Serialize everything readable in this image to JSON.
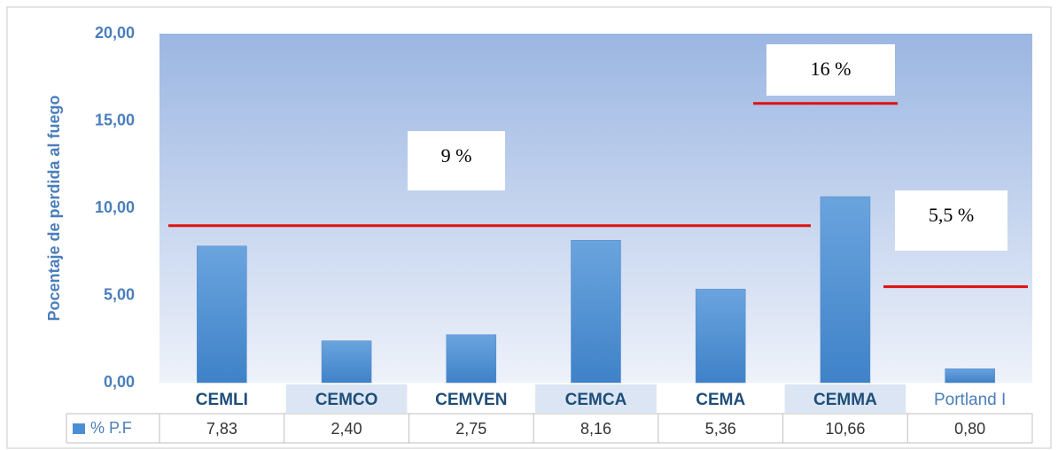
{
  "chart_data": {
    "type": "bar",
    "y_label": "Pocentaje de perdida al fuego",
    "categories": [
      "CEMLI",
      "CEMCO",
      "CEMVEN",
      "CEMCA",
      "CEMA",
      "CEMMA",
      "Portland I"
    ],
    "series": [
      {
        "name": "% P.F",
        "color": "#4a8fd6",
        "values": [
          7.83,
          2.4,
          2.75,
          8.16,
          5.36,
          10.66,
          0.8
        ],
        "value_labels": [
          "7,83",
          "2,40",
          "2,75",
          "8,16",
          "5,36",
          "10,66",
          "0,80"
        ]
      }
    ],
    "ylim": [
      0,
      20
    ],
    "yticks": [
      {
        "value": 0,
        "label": "0,00"
      },
      {
        "value": 5,
        "label": "5,00"
      },
      {
        "value": 10,
        "label": "10,00"
      },
      {
        "value": 15,
        "label": "15,00"
      },
      {
        "value": 20,
        "label": "20,00"
      }
    ],
    "annotations": [
      {
        "text": "9 %",
        "value": 9,
        "color": "#e01010"
      },
      {
        "text": "16 %",
        "value": 16,
        "color": "#e01010"
      },
      {
        "text": "5,5 %",
        "value": 5.5,
        "color": "#e01010"
      }
    ]
  }
}
